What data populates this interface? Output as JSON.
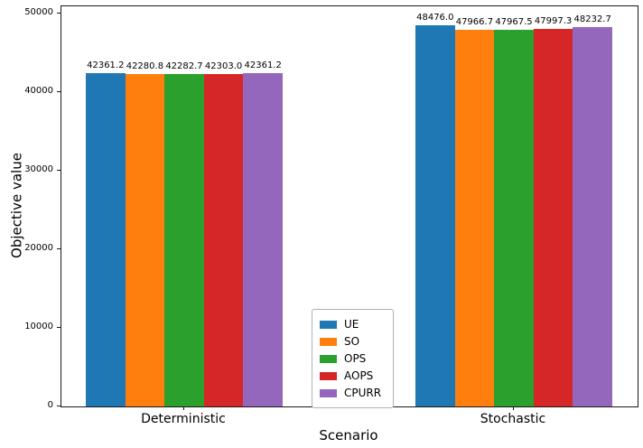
{
  "chart_data": {
    "type": "bar",
    "title": "",
    "xlabel": "Scenario",
    "ylabel": "Objective value",
    "categories": [
      "Deterministic",
      "Stochastic"
    ],
    "series": [
      {
        "name": "UE",
        "color": "#1f77b4",
        "values": [
          42361.2,
          48476.0
        ]
      },
      {
        "name": "SO",
        "color": "#ff7f0e",
        "values": [
          42280.8,
          47966.7
        ]
      },
      {
        "name": "OPS",
        "color": "#2ca02c",
        "values": [
          42282.7,
          47967.5
        ]
      },
      {
        "name": "AOPS",
        "color": "#d62728",
        "values": [
          42303.0,
          47997.3
        ]
      },
      {
        "name": "CPURR",
        "color": "#9467bd",
        "values": [
          42361.2,
          48232.7
        ]
      }
    ],
    "ylim": [
      0,
      50900
    ],
    "yticks": [
      0,
      10000,
      20000,
      30000,
      40000,
      50000
    ],
    "grid": false,
    "legend_position": "lower center inside axes",
    "value_label_decimals": 1
  }
}
